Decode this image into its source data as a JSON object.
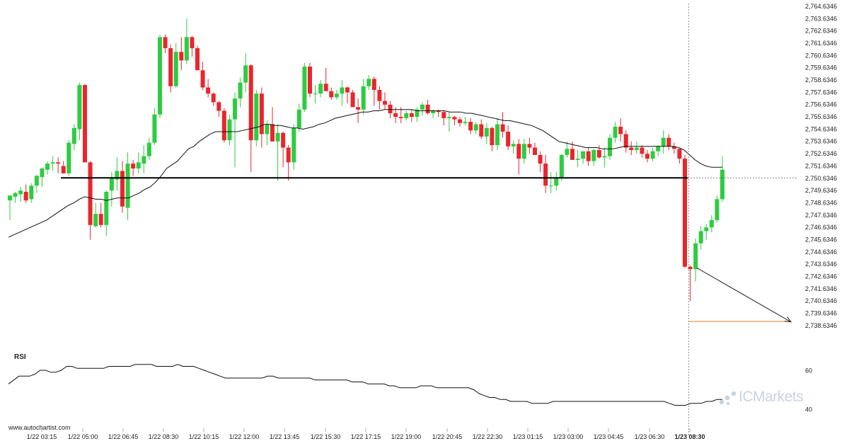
{
  "chart_data": [
    {
      "type": "candlestick",
      "title": "",
      "ylim": [
        2737.9346,
        2764.6346
      ],
      "y_ticks": [
        "2,764.6346",
        "2,763.6346",
        "2,762.6346",
        "2,761.6346",
        "2,760.6346",
        "2,759.6346",
        "2,758.6346",
        "2,757.6346",
        "2,756.6346",
        "2,755.6346",
        "2,754.6346",
        "2,753.6346",
        "2,752.6346",
        "2,751.6346",
        "2,750.6346",
        "2,749.6346",
        "2,748.6346",
        "2,747.6346",
        "2,746.6346",
        "2,745.6346",
        "2,744.6346",
        "2,743.6346",
        "2,742.6346",
        "2,741.6346",
        "2,740.6346",
        "2,739.6346",
        "2,738.6346"
      ],
      "x_ticks": [
        "1/22 03:15",
        "1/22 05:00",
        "1/22 06:45",
        "1/22 08:30",
        "1/22 10:15",
        "1/22 12:00",
        "1/22 13:45",
        "1/22 15:30",
        "1/22 17:15",
        "1/22 19:00",
        "1/22 20:45",
        "1/22 22:30",
        "1/23 01:15",
        "1/23 03:00",
        "1/23 04:45",
        "1/23 06:30",
        "1/23 08:30"
      ],
      "candles_ohlc": [
        [
          2748.8,
          2749.2,
          2747.2,
          2749.2
        ],
        [
          2749.1,
          2749.5,
          2748.6,
          2749.4
        ],
        [
          2749.3,
          2749.9,
          2748.7,
          2749.6
        ],
        [
          2749.5,
          2750.1,
          2748.6,
          2748.8
        ],
        [
          2748.9,
          2750.2,
          2748.6,
          2750.0
        ],
        [
          2750.0,
          2750.9,
          2749.4,
          2750.8
        ],
        [
          2750.7,
          2751.5,
          2749.9,
          2751.4
        ],
        [
          2751.3,
          2752.0,
          2750.9,
          2751.8
        ],
        [
          2751.8,
          2752.4,
          2751.2,
          2751.9
        ],
        [
          2751.9,
          2752.3,
          2751.0,
          2751.8
        ],
        [
          2751.6,
          2752.0,
          2751.0,
          2751.0
        ],
        [
          2751.0,
          2753.7,
          2750.8,
          2753.5
        ],
        [
          2753.4,
          2755.0,
          2752.9,
          2754.7
        ],
        [
          2754.6,
          2758.4,
          2753.7,
          2758.2
        ],
        [
          2758.2,
          2758.3,
          2751.9,
          2751.9
        ],
        [
          2751.9,
          2752.0,
          2745.6,
          2746.8
        ],
        [
          2746.7,
          2748.6,
          2746.6,
          2747.7
        ],
        [
          2747.7,
          2748.6,
          2746.6,
          2746.8
        ],
        [
          2746.8,
          2749.6,
          2745.9,
          2749.5
        ],
        [
          2749.6,
          2751.1,
          2748.3,
          2750.6
        ],
        [
          2750.5,
          2752.3,
          2749.6,
          2751.2
        ],
        [
          2751.2,
          2752.0,
          2747.8,
          2748.3
        ],
        [
          2748.2,
          2752.7,
          2747.2,
          2751.8
        ],
        [
          2751.8,
          2752.1,
          2750.8,
          2751.4
        ],
        [
          2751.4,
          2752.7,
          2751.0,
          2751.9
        ],
        [
          2751.8,
          2753.3,
          2751.0,
          2752.4
        ],
        [
          2752.4,
          2753.9,
          2752.1,
          2753.5
        ],
        [
          2753.5,
          2756.3,
          2753.3,
          2755.8
        ],
        [
          2755.8,
          2762.3,
          2755.5,
          2762.1
        ],
        [
          2762.1,
          2762.3,
          2760.8,
          2761.2
        ],
        [
          2761.2,
          2761.5,
          2757.6,
          2758.1
        ],
        [
          2758.1,
          2761.6,
          2758.0,
          2760.9
        ],
        [
          2760.9,
          2762.1,
          2759.4,
          2760.2
        ],
        [
          2760.2,
          2763.6,
          2759.9,
          2762.1
        ],
        [
          2762.1,
          2762.2,
          2760.5,
          2761.2
        ],
        [
          2761.2,
          2761.4,
          2759.6,
          2759.4
        ],
        [
          2759.4,
          2760.1,
          2757.8,
          2758.0
        ],
        [
          2758.0,
          2758.7,
          2757.2,
          2757.5
        ],
        [
          2757.5,
          2757.6,
          2756.5,
          2756.8
        ],
        [
          2756.8,
          2756.9,
          2755.6,
          2756.1
        ],
        [
          2756.1,
          2756.3,
          2753.5,
          2753.7
        ],
        [
          2753.7,
          2755.8,
          2753.3,
          2755.4
        ],
        [
          2755.4,
          2757.6,
          2751.5,
          2757.1
        ],
        [
          2757.1,
          2758.8,
          2756.4,
          2758.4
        ],
        [
          2758.4,
          2760.8,
          2757.6,
          2759.8
        ],
        [
          2759.8,
          2759.9,
          2751.1,
          2753.7
        ],
        [
          2753.7,
          2757.8,
          2753.2,
          2757.5
        ],
        [
          2757.5,
          2758.0,
          2753.1,
          2754.2
        ],
        [
          2754.2,
          2755.3,
          2753.3,
          2755.0
        ],
        [
          2755.0,
          2756.4,
          2754.4,
          2753.6
        ],
        [
          2753.6,
          2755.0,
          2750.4,
          2754.3
        ],
        [
          2754.3,
          2754.4,
          2751.5,
          2753.1
        ],
        [
          2753.1,
          2753.3,
          2750.4,
          2751.9
        ],
        [
          2751.9,
          2755.0,
          2751.3,
          2754.7
        ],
        [
          2754.7,
          2756.7,
          2754.4,
          2756.2
        ],
        [
          2756.2,
          2760.0,
          2756.0,
          2759.7
        ],
        [
          2759.7,
          2760.0,
          2757.2,
          2757.5
        ],
        [
          2757.5,
          2758.2,
          2756.7,
          2757.5
        ],
        [
          2757.5,
          2758.6,
          2757.2,
          2758.3
        ],
        [
          2758.3,
          2759.6,
          2757.9,
          2757.7
        ],
        [
          2757.7,
          2758.0,
          2757.0,
          2757.2
        ],
        [
          2757.2,
          2757.8,
          2757.0,
          2757.5
        ],
        [
          2757.5,
          2758.6,
          2756.5,
          2758.0
        ],
        [
          2758.0,
          2758.1,
          2756.7,
          2757.6
        ],
        [
          2757.6,
          2757.8,
          2756.6,
          2756.4
        ],
        [
          2756.4,
          2757.1,
          2755.1,
          2756.2
        ],
        [
          2756.2,
          2758.7,
          2755.8,
          2758.1
        ],
        [
          2758.1,
          2759.0,
          2757.8,
          2758.7
        ],
        [
          2758.7,
          2758.9,
          2756.5,
          2757.8
        ],
        [
          2757.8,
          2758.1,
          2756.2,
          2756.9
        ],
        [
          2756.9,
          2757.6,
          2756.2,
          2756.6
        ],
        [
          2756.6,
          2756.9,
          2755.5,
          2755.9
        ],
        [
          2755.9,
          2756.4,
          2755.1,
          2755.6
        ],
        [
          2755.6,
          2756.4,
          2755.1,
          2755.5
        ],
        [
          2755.5,
          2756.1,
          2755.3,
          2755.9
        ],
        [
          2755.9,
          2756.2,
          2755.2,
          2755.6
        ],
        [
          2755.6,
          2756.4,
          2755.2,
          2756.2
        ],
        [
          2756.2,
          2756.8,
          2755.7,
          2756.6
        ],
        [
          2756.6,
          2757.0,
          2755.8,
          2755.9
        ],
        [
          2755.9,
          2756.2,
          2755.5,
          2756.1
        ],
        [
          2756.1,
          2756.2,
          2755.6,
          2756.0
        ],
        [
          2756.0,
          2756.1,
          2754.9,
          2755.5
        ],
        [
          2755.5,
          2756.0,
          2754.4,
          2755.6
        ],
        [
          2755.6,
          2755.7,
          2754.9,
          2755.4
        ],
        [
          2755.4,
          2755.6,
          2754.8,
          2755.1
        ],
        [
          2755.1,
          2755.6,
          2754.9,
          2755.2
        ],
        [
          2755.2,
          2755.5,
          2754.2,
          2754.5
        ],
        [
          2754.5,
          2755.2,
          2754.2,
          2755.0
        ],
        [
          2755.0,
          2755.4,
          2753.8,
          2754.0
        ],
        [
          2754.0,
          2755.1,
          2753.4,
          2754.7
        ],
        [
          2754.7,
          2754.8,
          2752.8,
          2753.3
        ],
        [
          2753.3,
          2755.5,
          2752.9,
          2755.0
        ],
        [
          2755.0,
          2756.0,
          2753.9,
          2754.4
        ],
        [
          2754.4,
          2754.9,
          2752.9,
          2753.2
        ],
        [
          2753.2,
          2753.7,
          2752.6,
          2753.4
        ],
        [
          2753.4,
          2753.8,
          2750.9,
          2752.2
        ],
        [
          2752.2,
          2753.8,
          2751.8,
          2753.4
        ],
        [
          2753.4,
          2753.9,
          2752.6,
          2753.1
        ],
        [
          2753.1,
          2753.5,
          2752.5,
          2752.5
        ],
        [
          2752.5,
          2752.8,
          2751.1,
          2751.8
        ],
        [
          2751.8,
          2752.5,
          2749.4,
          2750.0
        ],
        [
          2750.0,
          2751.1,
          2749.4,
          2750.0
        ],
        [
          2750.0,
          2751.1,
          2749.6,
          2750.6
        ],
        [
          2750.6,
          2752.6,
          2750.4,
          2752.5
        ],
        [
          2752.5,
          2753.6,
          2752.3,
          2753.0
        ],
        [
          2753.0,
          2753.6,
          2752.3,
          2752.1
        ],
        [
          2752.1,
          2752.9,
          2751.5,
          2752.2
        ],
        [
          2752.2,
          2752.8,
          2751.8,
          2752.8
        ],
        [
          2752.8,
          2753.1,
          2751.6,
          2752.0
        ],
        [
          2752.0,
          2753.0,
          2751.6,
          2752.9
        ],
        [
          2752.9,
          2753.3,
          2752.2,
          2752.3
        ],
        [
          2752.3,
          2753.1,
          2751.5,
          2752.4
        ],
        [
          2752.4,
          2754.2,
          2752.1,
          2753.9
        ],
        [
          2753.9,
          2755.2,
          2753.5,
          2754.8
        ],
        [
          2754.8,
          2755.5,
          2753.6,
          2754.2
        ],
        [
          2754.2,
          2754.5,
          2752.7,
          2753.1
        ],
        [
          2753.1,
          2753.6,
          2752.5,
          2752.9
        ],
        [
          2752.9,
          2753.6,
          2752.6,
          2753.1
        ],
        [
          2753.1,
          2753.3,
          2752.3,
          2752.6
        ],
        [
          2752.6,
          2752.9,
          2751.9,
          2752.2
        ],
        [
          2752.2,
          2753.1,
          2752.0,
          2752.8
        ],
        [
          2752.8,
          2753.3,
          2752.4,
          2753.2
        ],
        [
          2753.2,
          2754.5,
          2752.6,
          2753.9
        ],
        [
          2753.9,
          2754.2,
          2752.9,
          2753.2
        ],
        [
          2753.2,
          2753.5,
          2752.6,
          2753.0
        ],
        [
          2753.0,
          2753.0,
          2751.8,
          2752.2
        ],
        [
          2752.2,
          2752.5,
          2743.3,
          2743.4
        ],
        [
          2743.4,
          2743.5,
          2740.6,
          2743.2
        ],
        [
          2743.2,
          2745.7,
          2742.2,
          2745.3
        ],
        [
          2745.3,
          2746.7,
          2744.8,
          2746.3
        ],
        [
          2746.3,
          2746.9,
          2745.6,
          2746.6
        ],
        [
          2746.6,
          2747.6,
          2746.2,
          2747.2
        ],
        [
          2747.2,
          2749.2,
          2747.0,
          2748.9
        ],
        [
          2748.9,
          2752.4,
          2748.7,
          2751.3
        ]
      ],
      "moving_average": [
        2745.8,
        2746.0,
        2746.2,
        2746.4,
        2746.6,
        2746.8,
        2747.0,
        2747.2,
        2747.5,
        2747.8,
        2748.1,
        2748.4,
        2748.6,
        2748.9,
        2749.1,
        2749.0,
        2748.9,
        2748.9,
        2748.8,
        2748.9,
        2749.0,
        2749.0,
        2749.0,
        2749.2,
        2749.4,
        2749.7,
        2749.9,
        2750.3,
        2750.8,
        2751.4,
        2751.7,
        2752.0,
        2752.5,
        2753.0,
        2753.2,
        2753.6,
        2753.9,
        2754.2,
        2754.4,
        2754.4,
        2754.4,
        2754.4,
        2754.4,
        2754.5,
        2754.6,
        2754.7,
        2754.8,
        2755.0,
        2755.0,
        2754.9,
        2754.9,
        2754.8,
        2754.7,
        2754.7,
        2754.6,
        2754.7,
        2754.8,
        2755.0,
        2755.1,
        2755.3,
        2755.5,
        2755.6,
        2755.7,
        2755.8,
        2755.9,
        2756.0,
        2756.0,
        2756.1,
        2756.1,
        2756.2,
        2756.2,
        2756.2,
        2756.2,
        2756.2,
        2756.2,
        2756.1,
        2756.1,
        2756.1,
        2756.1,
        2756.1,
        2756.1,
        2756.0,
        2756.0,
        2756.0,
        2755.9,
        2755.9,
        2755.8,
        2755.7,
        2755.6,
        2755.5,
        2755.4,
        2755.3,
        2755.3,
        2755.2,
        2755.1,
        2755.0,
        2754.9,
        2754.7,
        2754.5,
        2754.2,
        2753.9,
        2753.6,
        2753.5,
        2753.4,
        2753.3,
        2753.2,
        2753.1,
        2753.1,
        2753.1,
        2753.0,
        2753.0,
        2753.0,
        2753.1,
        2753.2,
        2753.2,
        2753.2,
        2753.2,
        2753.2,
        2753.2,
        2753.2,
        2753.2,
        2753.2,
        2753.2,
        2753.1,
        2752.9,
        2752.5,
        2752.1,
        2751.8,
        2751.6,
        2751.5,
        2751.5,
        2751.5
      ],
      "support_level": 2750.6346,
      "current_price": 2750.6346,
      "target_level": 2738.9346,
      "forecast_arrow": {
        "from": [
          2743.3,
          2743.3
        ],
        "to": [
          2739.0,
          2738.9
        ]
      }
    },
    {
      "type": "line",
      "name": "RSI",
      "y_ticks": [
        "60",
        "40"
      ],
      "ylim": [
        32,
        72
      ],
      "values": [
        53,
        55,
        57,
        57,
        57,
        58,
        60,
        60,
        59,
        59,
        60,
        62,
        62,
        61,
        61,
        61,
        61,
        61,
        61,
        62,
        62,
        62,
        62,
        62,
        63,
        63,
        63,
        63,
        62,
        62,
        62,
        62,
        63,
        62,
        62,
        62,
        61,
        60,
        59,
        58,
        57,
        56,
        56,
        56,
        56,
        56,
        56,
        56,
        56,
        57,
        57,
        56,
        56,
        56,
        56,
        56,
        56,
        56,
        55,
        55,
        55,
        55,
        55,
        55,
        55,
        54,
        54,
        54,
        53,
        53,
        53,
        53,
        52,
        52,
        51,
        51,
        51,
        51,
        52,
        52,
        52,
        51,
        51,
        51,
        51,
        51,
        51,
        51,
        50,
        48,
        47,
        46,
        46,
        45,
        45,
        44,
        44,
        44,
        44,
        43,
        43,
        43,
        43,
        44,
        44,
        44,
        44,
        44,
        44,
        44,
        44,
        44,
        44,
        44,
        44,
        44,
        44,
        44,
        44,
        44,
        44,
        44,
        44,
        44,
        44,
        43,
        42,
        42,
        42,
        43,
        43,
        43,
        44,
        44,
        45,
        45
      ]
    }
  ],
  "labels": {
    "rsi": "RSI",
    "source": "www.autochartist.com",
    "watermark": "ICMarkets"
  },
  "colors": {
    "up": "#2ecc40",
    "down": "#e8262d",
    "support": "#000000",
    "target": "#f07d1e",
    "watermark": "#c8d3df"
  }
}
